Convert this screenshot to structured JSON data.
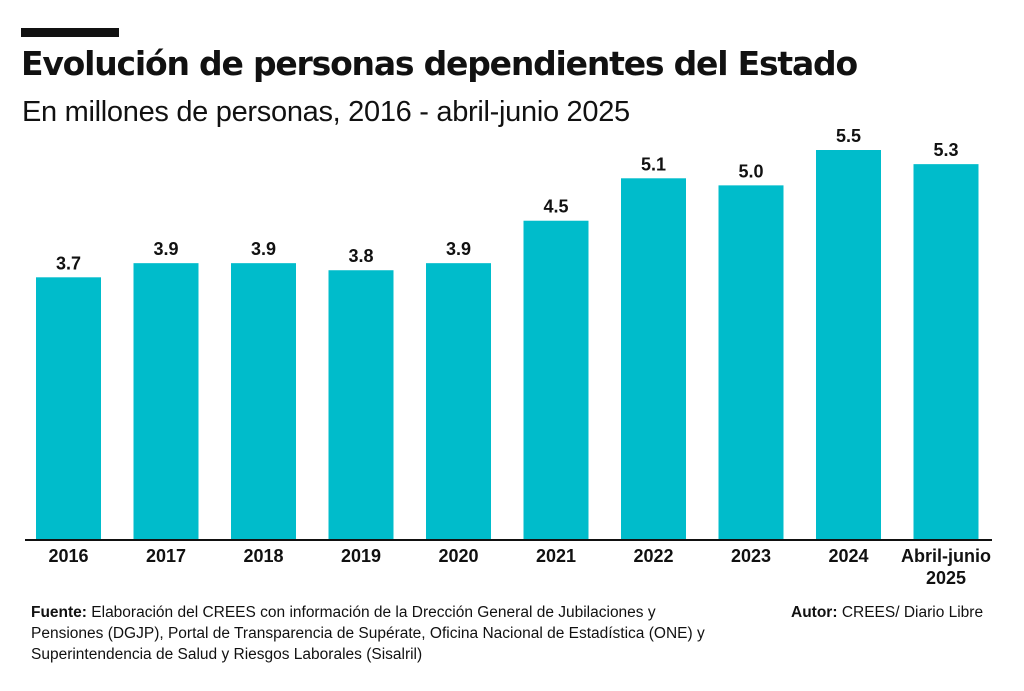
{
  "title": "Evolución de personas dependientes del Estado",
  "subtitle": "En millones de personas, 2016 - abril-junio 2025",
  "chart_data": {
    "type": "bar",
    "categories": [
      "2016",
      "2017",
      "2018",
      "2019",
      "2020",
      "2021",
      "2022",
      "2023",
      "2024",
      [
        "Abril-junio",
        "2025"
      ]
    ],
    "values": [
      3.7,
      3.9,
      3.9,
      3.8,
      3.9,
      4.5,
      5.1,
      5.0,
      5.5,
      5.3
    ],
    "labels": [
      "3.7",
      "3.9",
      "3.9",
      "3.8",
      "3.9",
      "4.5",
      "5.1",
      "5.0",
      "5.5",
      "5.3"
    ],
    "ylim": [
      0,
      5.5
    ],
    "bar_color": "#00bccb",
    "grid": false,
    "xlabel": "",
    "ylabel": ""
  },
  "footer": {
    "source_label": "Fuente:",
    "source_text": "Elaboración del CREES con información de la Drección General de Jubilaciones y Pensiones (DGJP), Portal de Transparencia de Supérate, Oficina Nacional de Estadística (ONE) y Superintendencia de Salud y Riesgos Laborales (Sisalril)",
    "author_label": "Autor:",
    "author_text": "CREES/ Diario Libre"
  }
}
